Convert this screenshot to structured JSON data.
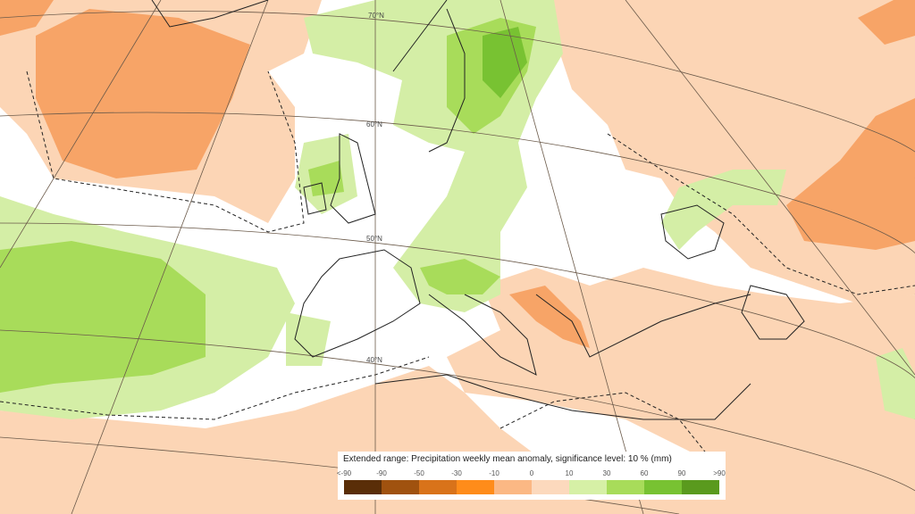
{
  "legend": {
    "title": "Extended range: Precipitation weekly mean anomaly, significance level: 10 % (mm)",
    "labels": [
      "<-90",
      "-90",
      "-50",
      "-30",
      "-10",
      "0",
      "10",
      "30",
      "60",
      "90",
      ">90"
    ],
    "colors": [
      "#5a2e08",
      "#a0520f",
      "#d9731a",
      "#ff8c1a",
      "#fbb884",
      "#fcd9bd",
      "#d6f0a6",
      "#a8dc5a",
      "#78c232",
      "#5a9a1e"
    ]
  },
  "map": {
    "latitude_labels": [
      "70°N",
      "60°N",
      "50°N",
      "40°N"
    ]
  }
}
